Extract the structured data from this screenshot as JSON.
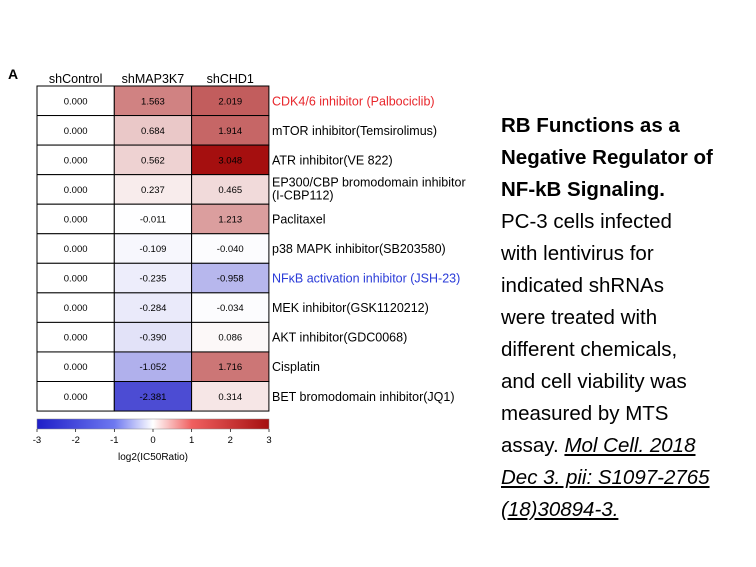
{
  "panel_letter": "A",
  "caption": {
    "title_lines": [
      "RB Functions as a",
      "Negative Regulator of",
      "NF-kB Signaling."
    ],
    "body_lines": [
      "PC-3 cells infected",
      "with lentivirus for",
      "indicated shRNAs",
      "were treated with",
      "different chemicals,",
      "and cell viability was",
      "measured by MTS"
    ],
    "lead": "assay.",
    "citation_lines": [
      "Mol Cell. 2018",
      "Dec 3. pii: S1097-2765",
      "(18)30894-3."
    ]
  },
  "chart_data": {
    "type": "heatmap",
    "columns": [
      "shControl",
      "shMAP3K7",
      "shCHD1"
    ],
    "rows": [
      {
        "label": "CDK4/6 inhibitor (Palbociclib)",
        "label2": "",
        "color": "#e8262b",
        "values": [
          0.0,
          1.563,
          2.019
        ],
        "labels": [
          "0.000",
          "1.563",
          "2.019"
        ]
      },
      {
        "label": "mTOR inhibitor(Temsirolimus)",
        "label2": "",
        "color": "#000000",
        "values": [
          0.0,
          0.684,
          1.914
        ],
        "labels": [
          "0.000",
          "0.684",
          "1.914"
        ]
      },
      {
        "label": "ATR inhibitor(VE 822)",
        "label2": "",
        "color": "#000000",
        "values": [
          0.0,
          0.562,
          3.048
        ],
        "labels": [
          "0.000",
          "0.562",
          "3.048"
        ]
      },
      {
        "label": "EP300/CBP  bromodomain inhibitor",
        "label2": "(I-CBP112)",
        "color": "#000000",
        "values": [
          0.0,
          0.237,
          0.465
        ],
        "labels": [
          "0.000",
          "0.237",
          "0.465"
        ]
      },
      {
        "label": "Paclitaxel",
        "label2": "",
        "color": "#000000",
        "values": [
          0.0,
          -0.011,
          1.213
        ],
        "labels": [
          "0.000",
          "-0.011",
          "1.213"
        ]
      },
      {
        "label": "p38 MAPK inhibitor(SB203580)",
        "label2": "",
        "color": "#000000",
        "values": [
          0.0,
          -0.109,
          -0.04
        ],
        "labels": [
          "0.000",
          "-0.109",
          "-0.040"
        ]
      },
      {
        "label": "NFκB activation inhibitor (JSH-23)",
        "label2": "",
        "color": "#2a3bd8",
        "values": [
          0.0,
          -0.235,
          -0.958
        ],
        "labels": [
          "0.000",
          "-0.235",
          "-0.958"
        ]
      },
      {
        "label": "MEK inhibitor(GSK1120212)",
        "label2": "",
        "color": "#000000",
        "values": [
          0.0,
          -0.284,
          -0.034
        ],
        "labels": [
          "0.000",
          "-0.284",
          "-0.034"
        ]
      },
      {
        "label": "AKT inhibitor(GDC0068)",
        "label2": "",
        "color": "#000000",
        "values": [
          0.0,
          -0.39,
          0.086
        ],
        "labels": [
          "0.000",
          "-0.390",
          "0.086"
        ]
      },
      {
        "label": "Cisplatin",
        "label2": "",
        "color": "#000000",
        "values": [
          0.0,
          -1.052,
          1.716
        ],
        "labels": [
          "0.000",
          "-1.052",
          "1.716"
        ]
      },
      {
        "label": "BET bromodomain inhibitor(JQ1)",
        "label2": "",
        "color": "#000000",
        "values": [
          0.0,
          -2.381,
          0.314
        ],
        "labels": [
          "0.000",
          "-2.381",
          "0.314"
        ]
      }
    ],
    "color_scale": {
      "min": -3,
      "max": 3,
      "ticks": [
        "-3",
        "-2",
        "-1",
        "0",
        "1",
        "2",
        "3"
      ]
    },
    "colorbar_label": "log2(IC50Ratio)",
    "colors": {
      "low": "#1e1ec8",
      "mid": "#ffffff",
      "high": "#a50f0f"
    }
  }
}
